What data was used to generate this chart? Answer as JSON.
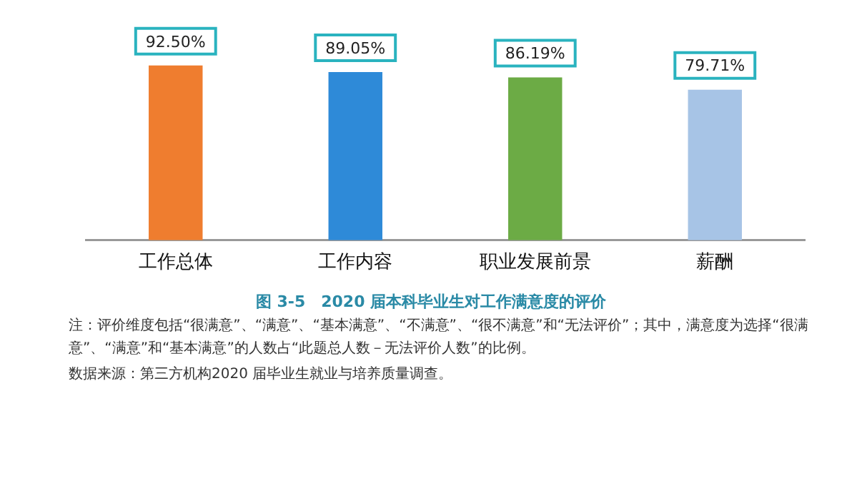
{
  "chart_data": {
    "type": "bar",
    "title": "图 3-5　2020 届本科毕业生对工作满意度的评价",
    "categories": [
      "工作总体",
      "工作内容",
      "职业发展前景",
      "薪酬"
    ],
    "values": [
      92.5,
      89.05,
      86.19,
      79.71
    ],
    "colors": [
      "#ef7d2f",
      "#2e8ad8",
      "#6cab45",
      "#a7c4e6"
    ],
    "value_labels": [
      "92.50%",
      "89.05%",
      "86.19%",
      "79.71%"
    ],
    "grid": false,
    "legend": false,
    "annotations": [
      "注：评价维度包括“很满意”、“满意”、“基本满意”、“不满意”、“很不满意”和“无法评价”；其中，满意度为选择“很满意”、“满意”和“基本满意”的人数占“此题总人数－无法评价人数”的比例。",
      "数据来源：第三方机构2020 届毕业生就业与培养质量调查。"
    ]
  }
}
